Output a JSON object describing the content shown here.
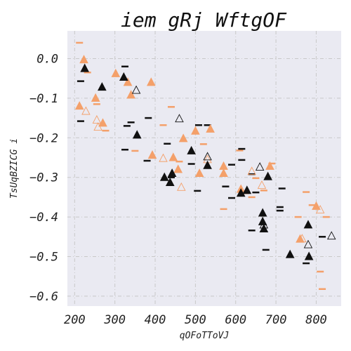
{
  "chart_data": {
    "type": "scatter",
    "title": "iem gRj WftgOF",
    "xlabel": "qOFoTToVJ",
    "ylabel": "TsUqBZICG i",
    "xlim": [
      182,
      862
    ],
    "ylim": [
      -0.625,
      0.07
    ],
    "xticks": [
      200,
      300,
      400,
      500,
      600,
      700,
      800
    ],
    "yticks": [
      0.0,
      -0.1,
      -0.2,
      -0.3,
      -0.4,
      -0.5,
      -0.6
    ],
    "ytick_labels": [
      "0.0",
      "−0.1",
      "−0.2",
      "−0.3",
      "−0.4",
      "−0.5",
      "−0.6"
    ],
    "grid": true,
    "colors": {
      "background": "#eaeaf2",
      "orange": "#f4a06a",
      "black": "#111111",
      "grid": "#c8c8c8"
    },
    "series": [
      {
        "name": "orange-dash",
        "marker": "dash",
        "color": "#f4a06a",
        "points": [
          [
            212,
            0.04
          ],
          [
            232,
            -0.035
          ],
          [
            255,
            -0.115
          ],
          [
            277,
            -0.182
          ],
          [
            350,
            -0.233
          ],
          [
            420,
            -0.168
          ],
          [
            440,
            -0.122
          ],
          [
            460,
            -0.26
          ],
          [
            520,
            -0.216
          ],
          [
            570,
            -0.38
          ],
          [
            610,
            -0.232
          ],
          [
            625,
            -0.34
          ],
          [
            640,
            -0.35
          ],
          [
            650,
            -0.302
          ],
          [
            670,
            -0.333
          ],
          [
            690,
            -0.265
          ],
          [
            755,
            -0.4
          ],
          [
            775,
            -0.337
          ],
          [
            790,
            -0.37
          ],
          [
            810,
            -0.538
          ],
          [
            815,
            -0.582
          ],
          [
            825,
            -0.4
          ]
        ]
      },
      {
        "name": "black-dash",
        "marker": "dash",
        "color": "#111111",
        "points": [
          [
            215,
            -0.057
          ],
          [
            215,
            -0.158
          ],
          [
            325,
            -0.02
          ],
          [
            325,
            -0.23
          ],
          [
            330,
            -0.17
          ],
          [
            340,
            -0.161
          ],
          [
            380,
            -0.258
          ],
          [
            383,
            -0.15
          ],
          [
            430,
            -0.215
          ],
          [
            440,
            -0.3
          ],
          [
            490,
            -0.266
          ],
          [
            505,
            -0.334
          ],
          [
            508,
            -0.168
          ],
          [
            530,
            -0.168
          ],
          [
            575,
            -0.323
          ],
          [
            590,
            -0.268
          ],
          [
            590,
            -0.352
          ],
          [
            615,
            -0.228
          ],
          [
            615,
            -0.256
          ],
          [
            640,
            -0.292
          ],
          [
            640,
            -0.434
          ],
          [
            650,
            -0.338
          ],
          [
            675,
            -0.483
          ],
          [
            710,
            -0.375
          ],
          [
            710,
            -0.384
          ],
          [
            715,
            -0.328
          ],
          [
            775,
            -0.517
          ],
          [
            815,
            -0.45
          ]
        ]
      },
      {
        "name": "orange-triangle-filled",
        "marker": "triangle",
        "fill": true,
        "color": "#f4a06a",
        "points": [
          [
            212,
            -0.12
          ],
          [
            223,
            -0.003
          ],
          [
            252,
            -0.1
          ],
          [
            270,
            -0.163
          ],
          [
            302,
            -0.038
          ],
          [
            332,
            -0.06
          ],
          [
            340,
            -0.092
          ],
          [
            390,
            -0.06
          ],
          [
            393,
            -0.244
          ],
          [
            445,
            -0.25
          ],
          [
            457,
            -0.28
          ],
          [
            470,
            -0.202
          ],
          [
            500,
            -0.183
          ],
          [
            510,
            -0.29
          ],
          [
            537,
            -0.178
          ],
          [
            570,
            -0.272
          ],
          [
            570,
            -0.29
          ],
          [
            613,
            -0.33
          ],
          [
            685,
            -0.272
          ],
          [
            760,
            -0.456
          ],
          [
            800,
            -0.373
          ]
        ]
      },
      {
        "name": "orange-triangle-hollow",
        "marker": "triangle",
        "fill": false,
        "color": "#f4a06a",
        "points": [
          [
            228,
            -0.133
          ],
          [
            255,
            -0.155
          ],
          [
            258,
            -0.173
          ],
          [
            420,
            -0.252
          ],
          [
            465,
            -0.325
          ],
          [
            530,
            -0.255
          ],
          [
            640,
            -0.285
          ],
          [
            665,
            -0.32
          ],
          [
            765,
            -0.455
          ],
          [
            810,
            -0.382
          ]
        ]
      },
      {
        "name": "black-triangle-filled",
        "marker": "triangle",
        "fill": true,
        "color": "#111111",
        "points": [
          [
            225,
            -0.025
          ],
          [
            268,
            -0.072
          ],
          [
            322,
            -0.047
          ],
          [
            355,
            -0.193
          ],
          [
            423,
            -0.3
          ],
          [
            437,
            -0.313
          ],
          [
            442,
            -0.29
          ],
          [
            490,
            -0.233
          ],
          [
            530,
            -0.27
          ],
          [
            613,
            -0.34
          ],
          [
            628,
            -0.333
          ],
          [
            667,
            -0.39
          ],
          [
            667,
            -0.412
          ],
          [
            670,
            -0.43
          ],
          [
            680,
            -0.298
          ],
          [
            735,
            -0.495
          ],
          [
            780,
            -0.42
          ],
          [
            782,
            -0.5
          ]
        ]
      },
      {
        "name": "black-triangle-hollow",
        "marker": "triangle",
        "fill": false,
        "color": "#111111",
        "points": [
          [
            353,
            -0.08
          ],
          [
            460,
            -0.152
          ],
          [
            530,
            -0.248
          ],
          [
            660,
            -0.274
          ],
          [
            670,
            -0.42
          ],
          [
            780,
            -0.47
          ],
          [
            838,
            -0.448
          ]
        ]
      }
    ]
  }
}
